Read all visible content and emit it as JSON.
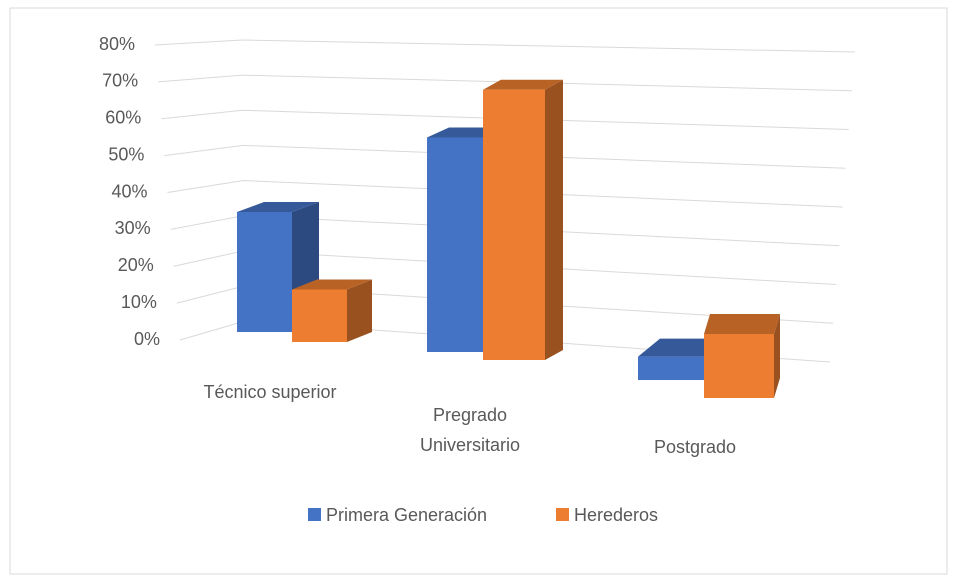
{
  "chart_data": {
    "type": "bar3d",
    "categories": [
      "Técnico superior",
      "Pregrado Universitario",
      "Postgrado"
    ],
    "series": [
      {
        "name": "Primera Generación",
        "color": "#4472c4",
        "values": [
          32,
          55,
          6
        ]
      },
      {
        "name": "Herederos",
        "color": "#ed7d31",
        "values": [
          14,
          68,
          16
        ]
      }
    ],
    "ylim": [
      0,
      80
    ],
    "yticks": [
      {
        "value": 0,
        "label": "0%"
      },
      {
        "value": 10,
        "label": "10%"
      },
      {
        "value": 20,
        "label": "20%"
      },
      {
        "value": 30,
        "label": "30%"
      },
      {
        "value": 40,
        "label": "40%"
      },
      {
        "value": 50,
        "label": "50%"
      },
      {
        "value": 60,
        "label": "60%"
      },
      {
        "value": 70,
        "label": "70%"
      },
      {
        "value": 80,
        "label": "80%"
      }
    ],
    "grid": true,
    "legend": "bottom"
  }
}
